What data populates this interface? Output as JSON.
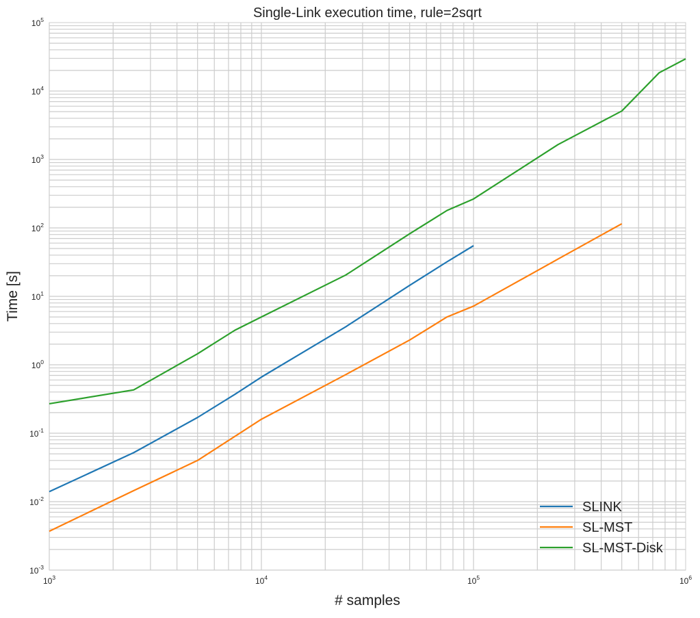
{
  "chart_data": {
    "type": "line",
    "title": "Single-Link execution time, rule=2sqrt",
    "xlabel": "# samples",
    "ylabel": "Time [s]",
    "xscale": "log",
    "yscale": "log",
    "xlim": [
      1000,
      1000000
    ],
    "ylim": [
      0.001,
      100000
    ],
    "grid": true,
    "legend_position": "lower right",
    "x_ticks": [
      {
        "base": "10",
        "exp": "3"
      },
      {
        "base": "10",
        "exp": "4"
      },
      {
        "base": "10",
        "exp": "5"
      },
      {
        "base": "10",
        "exp": "6"
      }
    ],
    "y_ticks": [
      {
        "base": "10",
        "exp": "-3"
      },
      {
        "base": "10",
        "exp": "-2"
      },
      {
        "base": "10",
        "exp": "-1"
      },
      {
        "base": "10",
        "exp": "0"
      },
      {
        "base": "10",
        "exp": "1"
      },
      {
        "base": "10",
        "exp": "2"
      },
      {
        "base": "10",
        "exp": "3"
      },
      {
        "base": "10",
        "exp": "4"
      },
      {
        "base": "10",
        "exp": "5"
      }
    ],
    "series": [
      {
        "name": "SLINK",
        "color": "#1f77b4",
        "x": [
          1000,
          2500,
          5000,
          7500,
          10000,
          25000,
          50000,
          75000,
          100000
        ],
        "y": [
          0.014,
          0.052,
          0.17,
          0.37,
          0.66,
          3.6,
          14.5,
          32,
          55
        ]
      },
      {
        "name": "SL-MST",
        "color": "#ff7f0e",
        "x": [
          1000,
          2500,
          5000,
          7500,
          10000,
          25000,
          50000,
          75000,
          100000,
          250000,
          500000
        ],
        "y": [
          0.0037,
          0.0145,
          0.04,
          0.09,
          0.16,
          0.72,
          2.3,
          5.0,
          7.2,
          35,
          115
        ]
      },
      {
        "name": "SL-MST-Disk",
        "color": "#2ca02c",
        "x": [
          1000,
          2500,
          5000,
          7500,
          10000,
          25000,
          50000,
          75000,
          100000,
          250000,
          500000,
          750000,
          1000000
        ],
        "y": [
          0.27,
          0.43,
          1.45,
          3.2,
          5.0,
          20.5,
          82,
          180,
          265,
          1650,
          5100,
          18500,
          29500
        ]
      }
    ]
  }
}
